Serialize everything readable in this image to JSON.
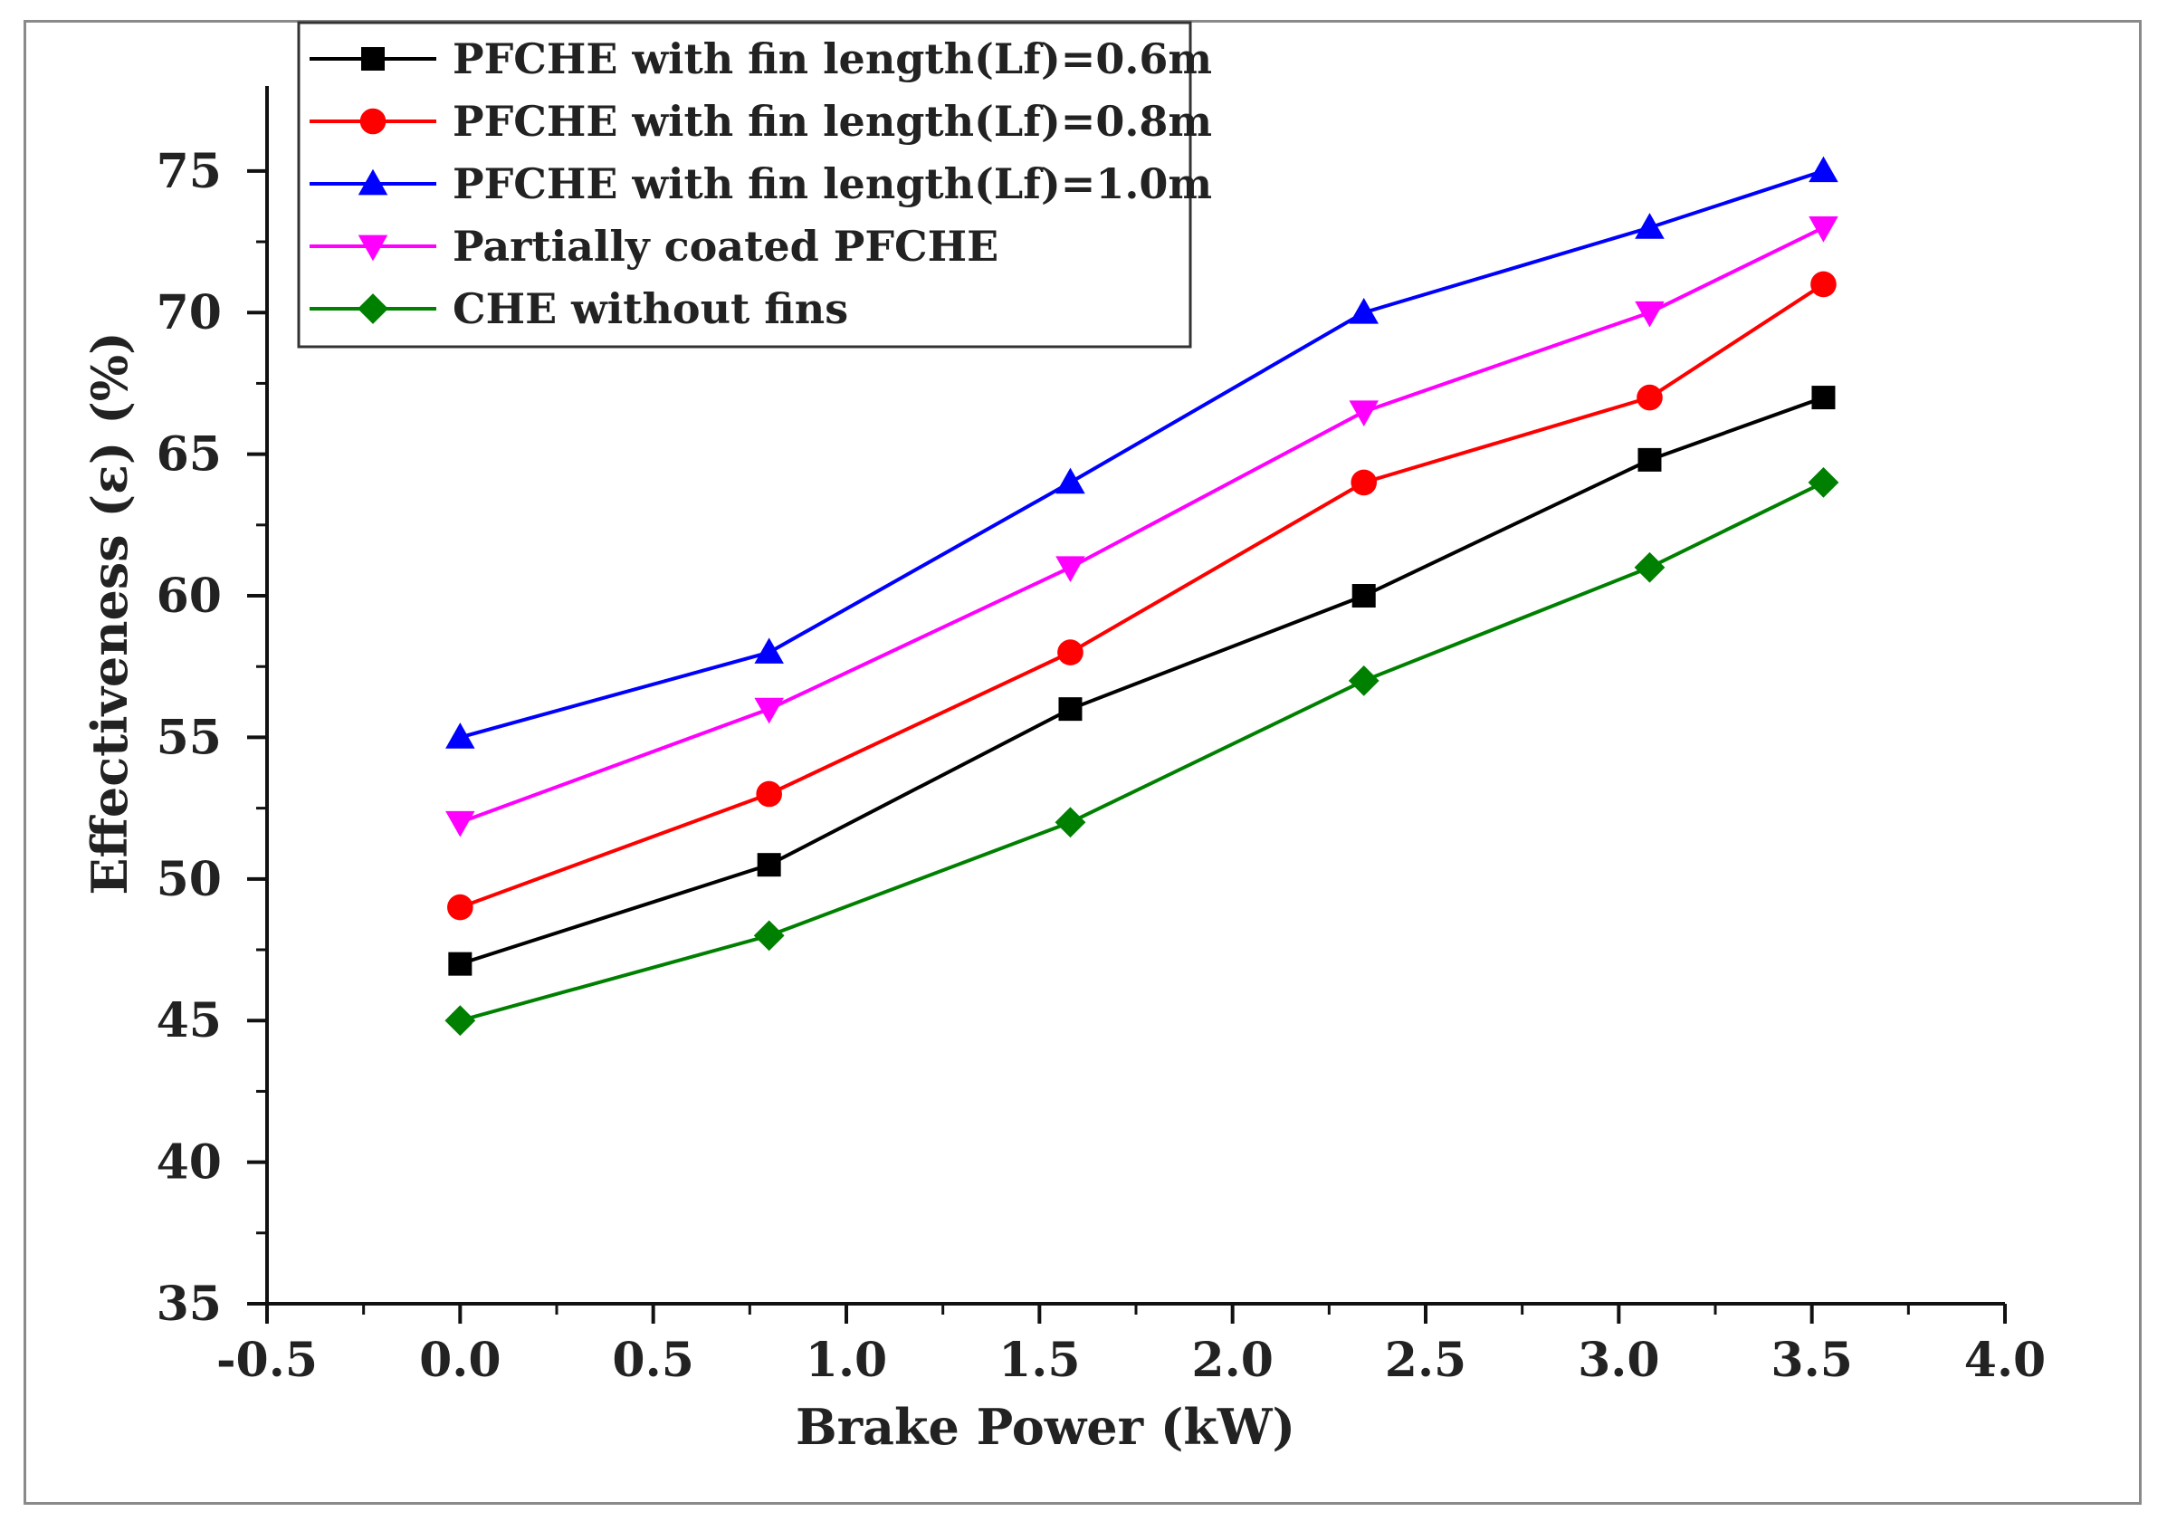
{
  "chart_data": {
    "type": "line",
    "title": "",
    "xlabel": "Brake Power (kW)",
    "ylabel": "Effectiveness (ε)  (%)",
    "xlim": [
      -0.5,
      4.0
    ],
    "ylim": [
      35,
      78
    ],
    "x_ticks": [
      "-0.5",
      "0.0",
      "0.5",
      "1.0",
      "1.5",
      "2.0",
      "2.5",
      "3.0",
      "3.5",
      "4.0"
    ],
    "y_ticks": [
      "35",
      "40",
      "45",
      "50",
      "55",
      "60",
      "65",
      "70",
      "75"
    ],
    "legend_position": "top-left",
    "x": [
      0.0,
      0.8,
      1.58,
      2.34,
      3.08,
      3.53
    ],
    "series": [
      {
        "name": "PFCHE with fin length(Lf)=0.6m",
        "color": "#000000",
        "marker": "square",
        "values": [
          47,
          50.5,
          56,
          60,
          64.8,
          67
        ]
      },
      {
        "name": "PFCHE with fin length(Lf)=0.8m",
        "color": "#ff0000",
        "marker": "circle",
        "values": [
          49,
          53,
          58,
          64,
          67,
          71
        ]
      },
      {
        "name": "PFCHE with fin length(Lf)=1.0m",
        "color": "#0000ff",
        "marker": "triangle-up",
        "values": [
          55,
          58,
          64,
          70,
          73,
          75
        ]
      },
      {
        "name": "Partially coated PFCHE",
        "color": "#ff00ff",
        "marker": "triangle-down",
        "values": [
          52,
          56,
          61,
          66.5,
          70,
          73
        ]
      },
      {
        "name": "CHE without fins",
        "color": "#008000",
        "marker": "diamond",
        "values": [
          45,
          48,
          52,
          57,
          61,
          64
        ]
      }
    ]
  }
}
